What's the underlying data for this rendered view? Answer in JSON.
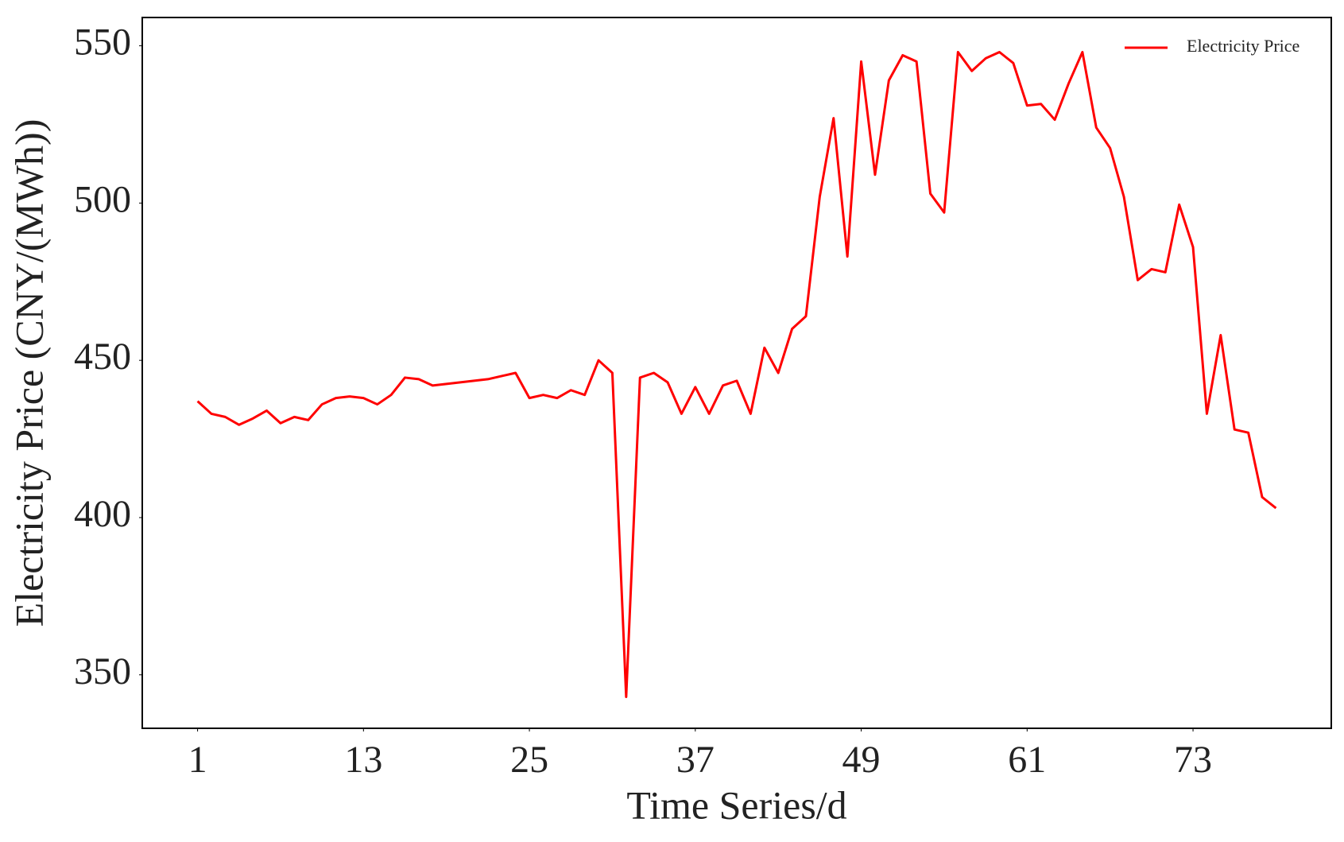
{
  "chart_data": {
    "type": "line",
    "x_label": "Time Series/d",
    "y_label": "Electricity Price (CNY/(MWh))",
    "x": [
      1,
      2,
      3,
      4,
      5,
      6,
      7,
      8,
      9,
      10,
      11,
      12,
      13,
      14,
      15,
      16,
      17,
      18,
      19,
      20,
      21,
      22,
      23,
      24,
      25,
      26,
      27,
      28,
      29,
      30,
      31,
      32,
      33,
      34,
      35,
      36,
      37,
      38,
      39,
      40,
      41,
      42,
      43,
      44,
      45,
      46,
      47,
      48,
      49,
      50,
      51,
      52,
      53,
      54,
      55,
      56,
      57,
      58,
      59,
      60,
      61,
      62,
      63,
      64,
      65,
      66,
      67,
      68,
      69,
      70,
      71,
      72,
      73,
      74,
      75,
      76,
      77,
      78,
      79
    ],
    "series": [
      {
        "name": "Electricity Price",
        "color": "#ff0000",
        "values": [
          437,
          433,
          432,
          429.5,
          431.5,
          434,
          430,
          432,
          431,
          436,
          438,
          438.5,
          438,
          436,
          439,
          444.5,
          444,
          442,
          442.5,
          443,
          443.5,
          444,
          445,
          446,
          438,
          439,
          438,
          440.5,
          439,
          450,
          446,
          343,
          444.5,
          446,
          443,
          433,
          441.5,
          433,
          442,
          443.5,
          433,
          454,
          446,
          460,
          464,
          502,
          527,
          483,
          545,
          509,
          539,
          547,
          545,
          503,
          497,
          548,
          542,
          546,
          548,
          544.5,
          531,
          531.5,
          526.5,
          538,
          548,
          524,
          517.5,
          502,
          475.5,
          479,
          478,
          499.5,
          486,
          433,
          458,
          428,
          427,
          406.5,
          403
        ]
      }
    ],
    "xlim": [
      -3,
      83
    ],
    "xticks": [
      1,
      13,
      25,
      37,
      49,
      61,
      73
    ],
    "ylim": [
      333,
      559
    ],
    "yticks": [
      350,
      400,
      450,
      500,
      550
    ],
    "grid": false,
    "legend": "upper right"
  }
}
